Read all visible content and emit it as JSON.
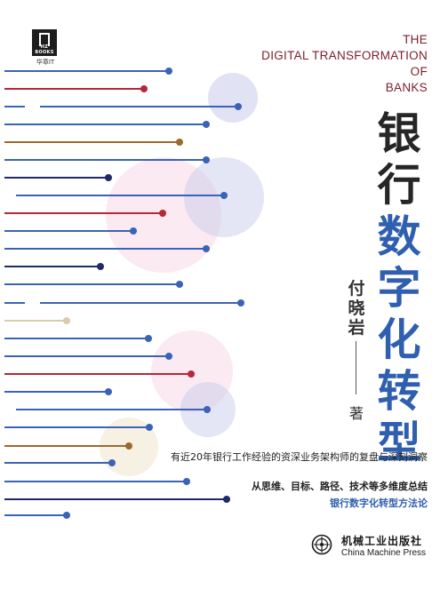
{
  "logo": {
    "mark": "HZ BOOKS",
    "caption": "华章IT",
    "icon": "hz-books-logo-icon"
  },
  "english_title": [
    "THE",
    "DIGITAL TRANSFORMATION",
    "OF",
    "BANKS"
  ],
  "chinese_title": {
    "line1": [
      "银",
      "行"
    ],
    "line2": [
      "数",
      "字",
      "化",
      "转",
      "型"
    ]
  },
  "author": {
    "name": [
      "付",
      "晓",
      "岩"
    ],
    "role": "著"
  },
  "taglines": {
    "line1": "有近20年银行工作经验的资深业务架构师的复盘与深刻洞察",
    "line2": "从思维、目标、路径、技术等多维度总结",
    "line3": "银行数字化转型方法论"
  },
  "publisher": {
    "cn": "机械工业出版社",
    "en": "China Machine Press",
    "icon": "cmp-emblem-icon"
  },
  "colors": {
    "title_dark": "#262626",
    "title_blue": "#2f5fae",
    "english_title": "#7d1c2a",
    "line_blue": "#3a63b8",
    "line_red": "#b5283a",
    "line_navy": "#1f2a66",
    "line_brown": "#9b6a2e",
    "line_beige": "#d8ccb0",
    "circle_lavender": "#c9cbeb",
    "circle_pink": "#f4c4d6",
    "circle_cream": "#efe3c8"
  }
}
